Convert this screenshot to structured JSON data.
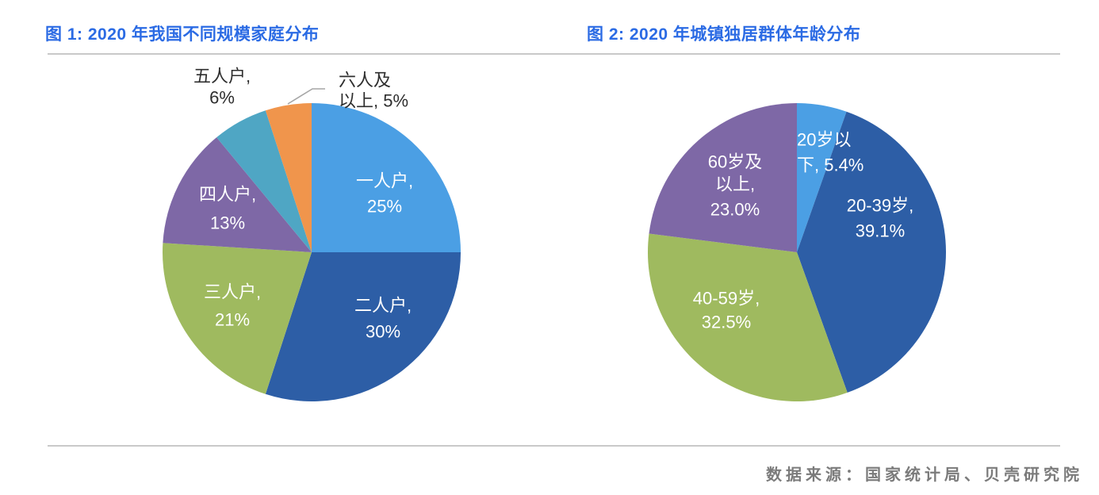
{
  "colors": {
    "title": "#2B6BE4",
    "divider": "#C9C9C9",
    "source_text": "#7B7B7B",
    "label_light": "#FFFFFF",
    "label_dark": "#2E2E2E",
    "leader_line": "#A6A6A6",
    "background": "#FFFFFF"
  },
  "footer": {
    "source": "数据来源：国家统计局、贝壳研究院"
  },
  "chart_data": [
    {
      "type": "pie",
      "title": "图 1: 2020 年我国不同规模家庭分布",
      "legend": "none",
      "unit": "%",
      "start_angle_deg": 0,
      "direction": "clockwise",
      "slices": [
        {
          "label": "一人户",
          "value": 25,
          "color": "#4B9FE4",
          "label_lines": [
            "一人户,",
            "25%"
          ],
          "label_position": "inside"
        },
        {
          "label": "二人户",
          "value": 30,
          "color": "#2D5EA6",
          "label_lines": [
            "二人户,",
            "30%"
          ],
          "label_position": "inside"
        },
        {
          "label": "三人户",
          "value": 21,
          "color": "#9FBA5F",
          "label_lines": [
            "三人户,",
            "21%"
          ],
          "label_position": "inside"
        },
        {
          "label": "四人户",
          "value": 13,
          "color": "#7E68A6",
          "label_lines": [
            "四人户,",
            "13%"
          ],
          "label_position": "inside"
        },
        {
          "label": "五人户",
          "value": 6,
          "color": "#4FA6C4",
          "label_lines": [
            "五人户,",
            "6%"
          ],
          "label_position": "outside"
        },
        {
          "label": "六人及以上",
          "value": 5,
          "color": "#F0954C",
          "label_lines": [
            "六人及",
            "以上, 5%"
          ],
          "label_position": "outside",
          "leader_line": true
        }
      ]
    },
    {
      "type": "pie",
      "title": "图 2: 2020 年城镇独居群体年龄分布",
      "legend": "none",
      "unit": "%",
      "start_angle_deg": 0,
      "direction": "clockwise",
      "slices": [
        {
          "label": "20岁以下",
          "value": 5.4,
          "color": "#4B9FE4",
          "label_lines": [
            "20岁以",
            "下, 5.4%"
          ],
          "label_position": "inside"
        },
        {
          "label": "20-39岁",
          "value": 39.1,
          "color": "#2D5EA6",
          "label_lines": [
            "20-39岁,",
            "39.1%"
          ],
          "label_position": "inside"
        },
        {
          "label": "40-59岁",
          "value": 32.5,
          "color": "#9FBA5F",
          "label_lines": [
            "40-59岁,",
            "32.5%"
          ],
          "label_position": "inside"
        },
        {
          "label": "60岁及以上",
          "value": 23.0,
          "color": "#7E68A6",
          "label_lines": [
            "60岁及",
            "以上,",
            "23.0%"
          ],
          "label_position": "inside"
        }
      ]
    }
  ]
}
